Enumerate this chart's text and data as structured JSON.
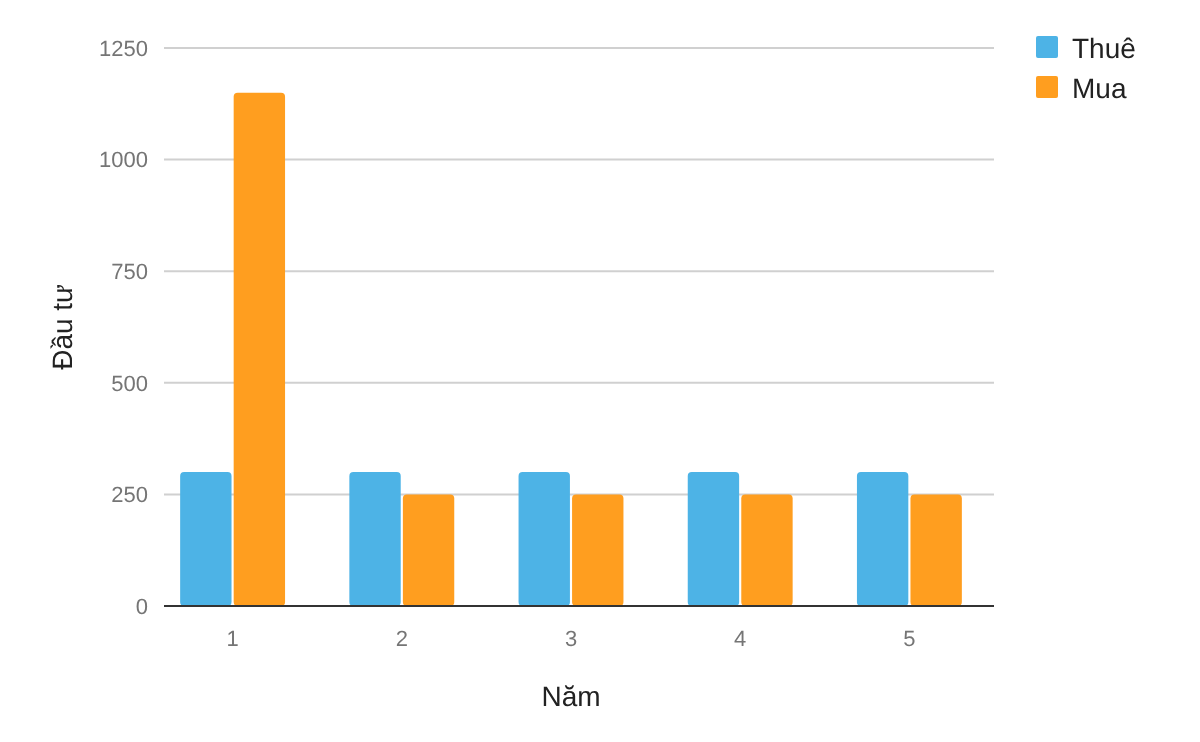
{
  "chart_data": {
    "type": "bar",
    "xlabel": "Năm",
    "ylabel": "Đầu tư",
    "categories": [
      "1",
      "2",
      "3",
      "4",
      "5"
    ],
    "series": [
      {
        "name": "Thuê",
        "color": "#4db3e6",
        "values": [
          300,
          300,
          300,
          300,
          300
        ]
      },
      {
        "name": "Mua",
        "color": "#ff9e1f",
        "values": [
          1150,
          250,
          250,
          250,
          250
        ]
      }
    ],
    "ylim": [
      0,
      1250
    ],
    "yticks": [
      0,
      250,
      500,
      750,
      1000,
      1250
    ],
    "grid": "y",
    "legend": "top right"
  }
}
